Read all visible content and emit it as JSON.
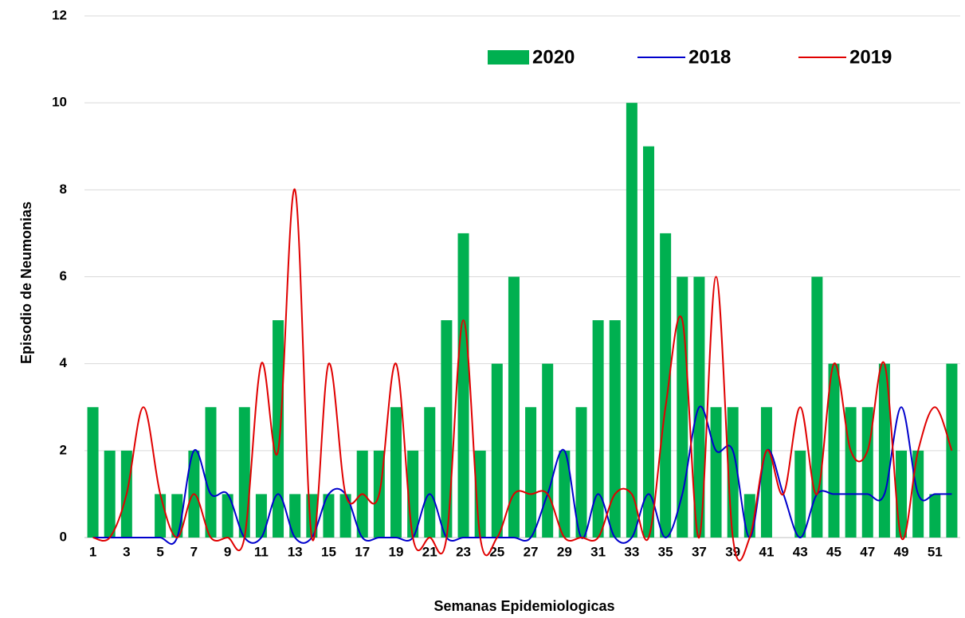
{
  "chart_data": {
    "type": "bar_line",
    "xlabel": "Semanas Epidemiologicas",
    "ylabel": "Episodio de Neumonias",
    "categories": [
      "1",
      null,
      "3",
      null,
      "5",
      null,
      "7",
      null,
      "9",
      null,
      "11",
      null,
      "13",
      null,
      "15",
      null,
      "17",
      null,
      "19",
      null,
      "21",
      null,
      "23",
      null,
      "25",
      null,
      "27",
      null,
      "29",
      null,
      "31",
      null,
      "33",
      null,
      "35",
      null,
      "37",
      null,
      "39",
      null,
      "41",
      null,
      "43",
      null,
      "45",
      null,
      "47",
      null,
      "49",
      null,
      "51",
      null
    ],
    "series": [
      {
        "name": "2020",
        "kind": "bar",
        "color": "#00b050",
        "values": [
          3,
          2,
          2,
          0,
          1,
          1,
          2,
          3,
          1,
          3,
          1,
          5,
          1,
          1,
          1,
          1,
          2,
          2,
          3,
          2,
          3,
          5,
          7,
          2,
          4,
          6,
          3,
          4,
          2,
          3,
          5,
          5,
          10,
          9,
          7,
          6,
          6,
          3,
          3,
          1,
          3,
          0,
          2,
          6,
          4,
          3,
          3,
          4,
          2,
          2,
          1,
          4
        ]
      },
      {
        "name": "2018",
        "kind": "line",
        "color": "#0000cc",
        "values": [
          0,
          0,
          0,
          0,
          0,
          0,
          2,
          1,
          1,
          0,
          0,
          1,
          0,
          0,
          1,
          1,
          0,
          0,
          0,
          0,
          1,
          0,
          0,
          0,
          0,
          0,
          0,
          1,
          2,
          0,
          1,
          0,
          0,
          1,
          0,
          1,
          3,
          2,
          2,
          0,
          2,
          1,
          0,
          1,
          1,
          1,
          1,
          1,
          3,
          1,
          1,
          1
        ]
      },
      {
        "name": "2019",
        "kind": "line",
        "color": "#e00000",
        "values": [
          0,
          0,
          1,
          3,
          1,
          0,
          1,
          0,
          0,
          0,
          4,
          2,
          8,
          0,
          4,
          1,
          1,
          1,
          4,
          0,
          0,
          0,
          5,
          0,
          0,
          1,
          1,
          1,
          0,
          0,
          0,
          1,
          1,
          0,
          3,
          5,
          0,
          6,
          0,
          0,
          2,
          1,
          3,
          1,
          4,
          2,
          2,
          4,
          0,
          2,
          3,
          2
        ]
      }
    ],
    "ylim": [
      0,
      12
    ],
    "yticks": [
      0,
      2,
      4,
      6,
      8,
      10,
      12
    ],
    "grid": true,
    "legend": "top"
  }
}
